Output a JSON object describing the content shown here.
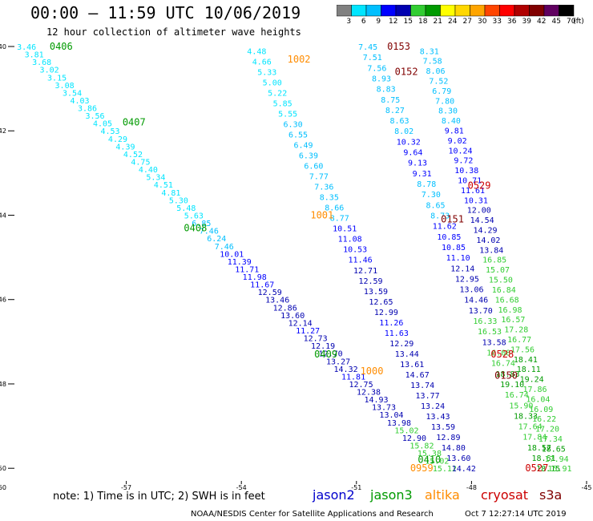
{
  "header": {
    "title": "00:00 – 11:59 UTC 10/06/2019",
    "subtitle": "12 hour collection of altimeter wave heights"
  },
  "colorbar": {
    "unit": "(ft)",
    "levels": [
      "3",
      "6",
      "9",
      "12",
      "15",
      "18",
      "21",
      "24",
      "27",
      "30",
      "33",
      "36",
      "39",
      "42",
      "45",
      "70"
    ],
    "colors": [
      "#808080",
      "#00e5ff",
      "#00bfff",
      "#0000ff",
      "#0000b0",
      "#32cd32",
      "#009a00",
      "#ffff00",
      "#ffd700",
      "#ffa500",
      "#ff4500",
      "#ff0000",
      "#b00000",
      "#800000",
      "#600060",
      "#000000"
    ]
  },
  "note": "note:  1) Time is in UTC;  2) SWH is in feet",
  "satellites": [
    {
      "name": "jason2",
      "color": "#0000cc"
    },
    {
      "name": "jason3",
      "color": "#009a00"
    },
    {
      "name": "altika",
      "color": "#ff8c00"
    },
    {
      "name": "cryosat",
      "color": "#cc0000"
    },
    {
      "name": "s3a",
      "color": "#800000"
    }
  ],
  "footer": {
    "credit": "NOAA/NESDIS Center for Satellite Applications and Research",
    "date": "Oct  7 12:27:14 UTC 2019"
  },
  "chart_data": {
    "type": "scatter",
    "x_ticks": [
      "-57",
      "-54",
      "-51",
      "-48",
      "-45"
    ],
    "y_ticks": [
      "-40",
      "-42",
      "-44",
      "-46",
      "-48",
      "-50"
    ],
    "corner_label": "-60",
    "xlim": [
      -60,
      -45
    ],
    "ylim": [
      -50.3,
      -40
    ],
    "grid": false,
    "level_colors": [
      [
        6,
        "#00e5ff"
      ],
      [
        9,
        "#00bfff"
      ],
      [
        12,
        "#0000ff"
      ],
      [
        15,
        "#0000b0"
      ],
      [
        18,
        "#32cd32"
      ],
      [
        21,
        "#009a00"
      ],
      [
        24,
        "#ffff00"
      ],
      [
        999,
        "#ffa500"
      ]
    ],
    "tracks": [
      {
        "start": [
          -59.6,
          -40.0
        ],
        "end": [
          -48.7,
          -50.0
        ],
        "values": [
          "3.46",
          "3.81",
          "3.68",
          "3.02",
          "3.15",
          "3.08",
          "3.54",
          "4.03",
          "3.86",
          "3.56",
          "4.05",
          "4.53",
          "4.29",
          "4.39",
          "4.52",
          "4.75",
          "4.40",
          "5.34",
          "4.51",
          "4.81",
          "5.30",
          "5.48",
          "5.63",
          "6.85",
          "7.46",
          "6.24",
          "7.46",
          "10.01",
          "11.39",
          "11.71",
          "11.98",
          "11.67",
          "12.59",
          "13.46",
          "12.86",
          "13.60",
          "12.14",
          "11.27",
          "12.73",
          "12.19",
          "12.70",
          "13.27",
          "14.32",
          "11.81",
          "12.75",
          "12.38",
          "14.93",
          "13.73",
          "13.04",
          "13.98",
          "15.02",
          "12.90",
          "15.82",
          "15.38",
          "15.02",
          "15.12"
        ]
      },
      {
        "start": [
          -53.6,
          -40.1
        ],
        "end": [
          -48.2,
          -50.0
        ],
        "values": [
          "4.48",
          "4.66",
          "5.33",
          "5.00",
          "5.22",
          "5.85",
          "5.55",
          "6.30",
          "6.55",
          "6.49",
          "6.39",
          "6.60",
          "7.77",
          "7.36",
          "8.35",
          "8.66",
          "8.77",
          "10.51",
          "11.08",
          "10.53",
          "11.46",
          "12.71",
          "12.59",
          "13.59",
          "12.65",
          "12.99",
          "11.26",
          "11.63",
          "12.29",
          "13.44",
          "13.61",
          "14.67",
          "13.74",
          "13.77",
          "13.24",
          "13.43",
          "13.59",
          "12.89",
          "14.80",
          "13.60",
          "14.42"
        ]
      },
      {
        "start": [
          -50.7,
          -40.0
        ],
        "end": [
          -46.0,
          -50.0
        ],
        "values": [
          "7.45",
          "7.51",
          "7.56",
          "8.93",
          "8.83",
          "8.75",
          "8.27",
          "8.63",
          "8.02",
          "10.32",
          "9.64",
          "9.13",
          "9.31",
          "8.78",
          "7.30",
          "8.65",
          "8.73",
          "11.62",
          "10.85",
          "10.85",
          "11.10",
          "12.14",
          "12.95",
          "13.06",
          "14.46",
          "13.70",
          "16.33",
          "16.53",
          "13.58",
          "16.08",
          "16.74",
          "18.83",
          "19.10",
          "16.74",
          "15.90",
          "18.33",
          "17.64",
          "17.84",
          "18.57",
          "18.61",
          "18.15"
        ]
      },
      {
        "start": [
          -49.1,
          -40.1
        ],
        "end": [
          -45.7,
          -50.0
        ],
        "values": [
          "8.31",
          "7.58",
          "8.06",
          "7.52",
          "6.79",
          "7.80",
          "8.30",
          "8.40",
          "9.81",
          "9.02",
          "10.24",
          "9.72",
          "10.38",
          "10.71",
          "11.61",
          "10.31",
          "12.00",
          "14.54",
          "14.29",
          "14.02",
          "13.84",
          "16.85",
          "15.07",
          "15.50",
          "16.84",
          "16.68",
          "16.98",
          "16.57",
          "17.28",
          "16.77",
          "17.56",
          "18.41",
          "18.11",
          "19.24",
          "17.86",
          "16.04",
          "16.09",
          "16.22",
          "17.20",
          "17.34",
          "18.65",
          "17.94",
          "15.91"
        ]
      }
    ],
    "time_labels": [
      {
        "text": "0406",
        "lon": -59.0,
        "lat": -40.0,
        "color": "#009a00"
      },
      {
        "text": "0407",
        "lon": -57.1,
        "lat": -41.8,
        "color": "#009a00"
      },
      {
        "text": "0408",
        "lon": -55.5,
        "lat": -44.3,
        "color": "#009a00"
      },
      {
        "text": "0409",
        "lon": -52.1,
        "lat": -47.3,
        "color": "#009a00"
      },
      {
        "text": "0410",
        "lon": -49.4,
        "lat": -49.8,
        "color": "#009a00"
      },
      {
        "text": "1002",
        "lon": -52.8,
        "lat": -40.3,
        "color": "#ff8c00"
      },
      {
        "text": "1001",
        "lon": -52.2,
        "lat": -44.0,
        "color": "#ff8c00"
      },
      {
        "text": "1000",
        "lon": -50.9,
        "lat": -47.7,
        "color": "#ff8c00"
      },
      {
        "text": "0959",
        "lon": -49.6,
        "lat": -50.0,
        "color": "#ff8c00"
      },
      {
        "text": "0153",
        "lon": -50.2,
        "lat": -40.0,
        "color": "#800000"
      },
      {
        "text": "0152",
        "lon": -50.0,
        "lat": -40.6,
        "color": "#800000"
      },
      {
        "text": "0151",
        "lon": -48.8,
        "lat": -44.1,
        "color": "#800000"
      },
      {
        "text": "0150",
        "lon": -47.4,
        "lat": -47.8,
        "color": "#800000"
      },
      {
        "text": "0529",
        "lon": -48.1,
        "lat": -43.3,
        "color": "#cc0000"
      },
      {
        "text": "0528",
        "lon": -47.5,
        "lat": -47.3,
        "color": "#cc0000"
      },
      {
        "text": "0527",
        "lon": -46.6,
        "lat": -50.0,
        "color": "#cc0000"
      }
    ]
  }
}
